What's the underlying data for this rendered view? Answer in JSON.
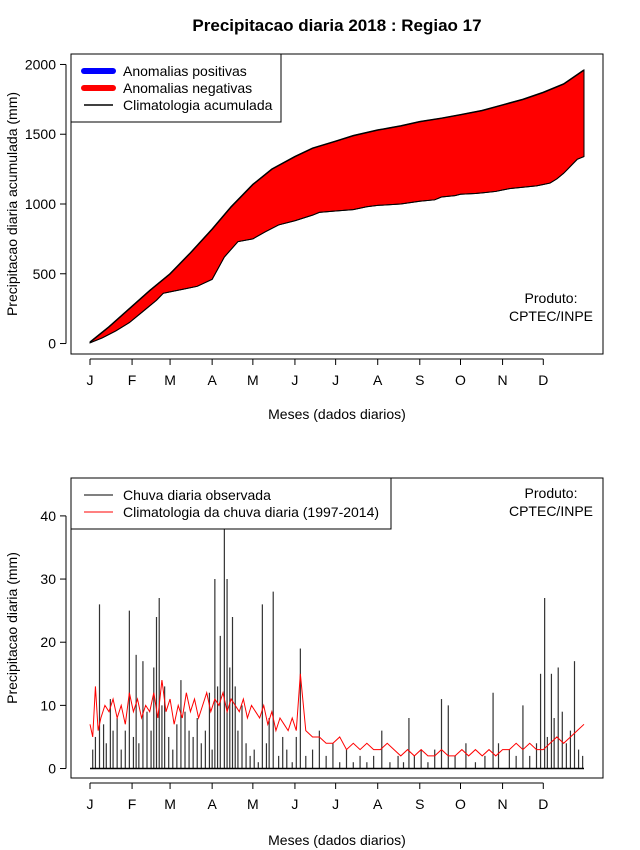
{
  "page_title": "Precipitacao diaria 2018 : Regiao 17",
  "chart_data": [
    {
      "type": "area",
      "title": "Precipitacao diaria 2018 : Regiao 17",
      "xlabel": "Meses (dados diarios)",
      "ylabel": "Precipitacao diaria acumulada (mm)",
      "x_ticks": [
        {
          "day": 1,
          "label": "J"
        },
        {
          "day": 32,
          "label": "F"
        },
        {
          "day": 60,
          "label": "M"
        },
        {
          "day": 91,
          "label": "A"
        },
        {
          "day": 121,
          "label": "M"
        },
        {
          "day": 152,
          "label": "J"
        },
        {
          "day": 182,
          "label": "J"
        },
        {
          "day": 213,
          "label": "A"
        },
        {
          "day": 244,
          "label": "S"
        },
        {
          "day": 274,
          "label": "O"
        },
        {
          "day": 305,
          "label": "N"
        },
        {
          "day": 335,
          "label": "D"
        }
      ],
      "y_ticks": [
        "0",
        "500",
        "1000",
        "1500",
        "2000"
      ],
      "xlim": [
        -13,
        379
      ],
      "ylim": [
        -75,
        2075
      ],
      "climatology_accumulated": {
        "days": [
          1,
          15,
          30,
          45,
          60,
          75,
          91,
          105,
          121,
          135,
          152,
          165,
          182,
          195,
          213,
          230,
          244,
          260,
          274,
          290,
          305,
          320,
          335,
          350,
          365
        ],
        "values": [
          10,
          120,
          250,
          380,
          500,
          650,
          820,
          980,
          1140,
          1250,
          1340,
          1400,
          1450,
          1490,
          1530,
          1560,
          1590,
          1615,
          1640,
          1670,
          1710,
          1750,
          1800,
          1860,
          1960
        ]
      },
      "observed_accumulated": {
        "days": [
          1,
          10,
          20,
          30,
          40,
          50,
          55,
          60,
          70,
          80,
          91,
          100,
          110,
          121,
          130,
          140,
          152,
          165,
          170,
          182,
          195,
          205,
          213,
          230,
          244,
          255,
          260,
          270,
          274,
          285,
          290,
          300,
          305,
          310,
          320,
          330,
          335,
          340,
          345,
          350,
          360,
          365
        ],
        "values": [
          5,
          40,
          90,
          150,
          230,
          310,
          360,
          370,
          390,
          410,
          460,
          620,
          730,
          750,
          800,
          850,
          880,
          920,
          940,
          950,
          960,
          980,
          990,
          1000,
          1020,
          1030,
          1050,
          1060,
          1070,
          1075,
          1080,
          1090,
          1100,
          1110,
          1120,
          1130,
          1140,
          1150,
          1180,
          1220,
          1320,
          1340
        ]
      },
      "legend": [
        {
          "label": "Anomalias positivas",
          "color": "#0000ff",
          "style": "thick-line"
        },
        {
          "label": "Anomalias negativas",
          "color": "#ff0000",
          "style": "thick-line"
        },
        {
          "label": "Climatologia acumulada",
          "color": "#000000",
          "style": "line"
        }
      ],
      "legend_position": "top-left",
      "annotation": [
        "Produto:",
        "CPTEC/INPE"
      ]
    },
    {
      "type": "bar",
      "xlabel": "Meses (dados diarios)",
      "ylabel": "Precipitacao diaria (mm)",
      "x_ticks": [
        {
          "day": 1,
          "label": "J"
        },
        {
          "day": 32,
          "label": "F"
        },
        {
          "day": 60,
          "label": "M"
        },
        {
          "day": 91,
          "label": "A"
        },
        {
          "day": 121,
          "label": "M"
        },
        {
          "day": 152,
          "label": "J"
        },
        {
          "day": 182,
          "label": "J"
        },
        {
          "day": 213,
          "label": "A"
        },
        {
          "day": 244,
          "label": "S"
        },
        {
          "day": 274,
          "label": "O"
        },
        {
          "day": 305,
          "label": "N"
        },
        {
          "day": 335,
          "label": "D"
        }
      ],
      "y_ticks": [
        "0",
        "10",
        "20",
        "30",
        "40"
      ],
      "xlim": [
        -13,
        379
      ],
      "ylim": [
        -1.5,
        46
      ],
      "observed_daily": {
        "days": [
          3,
          5,
          8,
          11,
          13,
          16,
          18,
          21,
          24,
          27,
          30,
          33,
          35,
          37,
          40,
          43,
          46,
          48,
          50,
          52,
          54,
          56,
          59,
          62,
          65,
          68,
          71,
          74,
          77,
          80,
          83,
          86,
          89,
          91,
          93,
          95,
          97,
          100,
          102,
          104,
          106,
          108,
          110,
          113,
          116,
          119,
          122,
          125,
          128,
          131,
          133,
          136,
          140,
          143,
          146,
          150,
          153,
          156,
          160,
          165,
          170,
          175,
          180,
          185,
          190,
          195,
          200,
          205,
          210,
          216,
          222,
          228,
          232,
          236,
          240,
          245,
          250,
          255,
          260,
          265,
          270,
          278,
          285,
          292,
          298,
          302,
          310,
          315,
          320,
          325,
          330,
          333,
          336,
          338,
          341,
          343,
          346,
          349,
          352,
          355,
          358,
          361,
          364
        ],
        "values": [
          3,
          5,
          26,
          7,
          4,
          11,
          6,
          8,
          3,
          6,
          25,
          5,
          18,
          4,
          17,
          9,
          6,
          16,
          24,
          27,
          10,
          13,
          5,
          3,
          7,
          14,
          9,
          6,
          5,
          8,
          4,
          6,
          12,
          3,
          30,
          13,
          21,
          38,
          30,
          16,
          24,
          13,
          6,
          10,
          4,
          2,
          3,
          1,
          26,
          4,
          8,
          28,
          2,
          5,
          3,
          1,
          5,
          19,
          2,
          3,
          6,
          2,
          4,
          1,
          3,
          1,
          2,
          1,
          2,
          6,
          1,
          2,
          1,
          8,
          2,
          3,
          1,
          3,
          11,
          10,
          2,
          4,
          1,
          2,
          12,
          4,
          3,
          2,
          10,
          2,
          4,
          15,
          27,
          5,
          15,
          8,
          16,
          9,
          4,
          6,
          17,
          3,
          2
        ]
      },
      "climatology_daily": {
        "days": [
          1,
          3,
          5,
          7,
          9,
          12,
          15,
          18,
          21,
          24,
          27,
          30,
          33,
          36,
          39,
          42,
          45,
          48,
          51,
          54,
          57,
          60,
          63,
          66,
          69,
          72,
          75,
          78,
          81,
          84,
          87,
          90,
          93,
          96,
          99,
          102,
          105,
          108,
          111,
          114,
          117,
          120,
          123,
          126,
          129,
          132,
          135,
          138,
          141,
          144,
          147,
          150,
          153,
          156,
          160,
          165,
          170,
          175,
          180,
          185,
          190,
          195,
          200,
          205,
          210,
          215,
          220,
          225,
          230,
          235,
          240,
          245,
          250,
          255,
          260,
          265,
          270,
          275,
          280,
          285,
          290,
          295,
          300,
          305,
          310,
          315,
          320,
          325,
          330,
          335,
          340,
          345,
          350,
          355,
          360,
          365
        ],
        "values": [
          7,
          5,
          13,
          6,
          8,
          10,
          9,
          11,
          8,
          10,
          7,
          12,
          9,
          11,
          8,
          10,
          9,
          12,
          8,
          14,
          9,
          11,
          7,
          10,
          8,
          12,
          9,
          11,
          8,
          10,
          12,
          9,
          11,
          10,
          12,
          9,
          11,
          10,
          9,
          11,
          8,
          10,
          9,
          8,
          10,
          7,
          9,
          6,
          8,
          7,
          6,
          8,
          6,
          15,
          6,
          5,
          5,
          4,
          4,
          5,
          3,
          4,
          3,
          4,
          3,
          3,
          4,
          3,
          2,
          3,
          2,
          3,
          2,
          2,
          3,
          2,
          2,
          3,
          2,
          3,
          2,
          3,
          2,
          3,
          3,
          4,
          3,
          4,
          3,
          3,
          4,
          5,
          4,
          5,
          6,
          7
        ]
      },
      "legend": [
        {
          "label": "Chuva diaria observada",
          "color": "#000000",
          "style": "line"
        },
        {
          "label": "Climatologia da chuva diaria (1997-2014)",
          "color": "#ff0000",
          "style": "line"
        }
      ],
      "legend_position": "top-left",
      "annotation": [
        "Produto:",
        "CPTEC/INPE"
      ]
    }
  ]
}
